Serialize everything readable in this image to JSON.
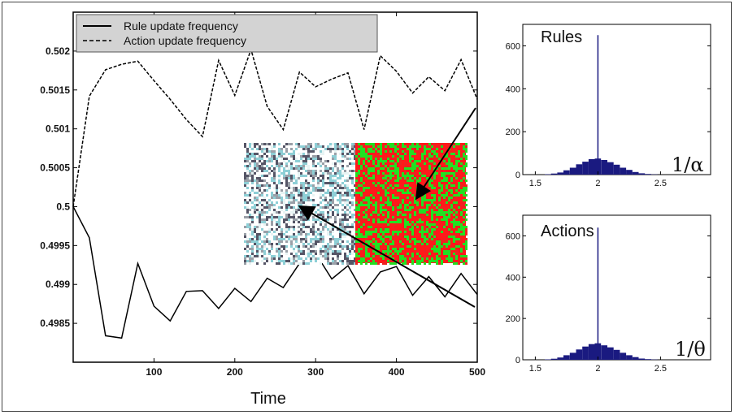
{
  "chart_data": [
    {
      "type": "line",
      "title": "",
      "xlabel": "Time",
      "ylabel": "",
      "xlim": [
        0,
        500
      ],
      "ylim": [
        0.498,
        0.5025
      ],
      "x_ticks": [
        "100",
        "200",
        "300",
        "400",
        "500"
      ],
      "y_ticks": [
        "0.4985",
        "0.499",
        "0.4995",
        "0.5",
        "0.5005",
        "0.501",
        "0.5015",
        "0.502"
      ],
      "legend_placement": "top-left",
      "grid": false,
      "series": [
        {
          "name": "Rule update frequency",
          "style": "solid",
          "color": "#000000",
          "x": [
            0,
            20,
            40,
            60,
            80,
            100,
            120,
            140,
            160,
            180,
            200,
            220,
            240,
            260,
            280,
            300,
            320,
            340,
            360,
            380,
            400,
            420,
            440,
            460,
            480,
            500
          ],
          "y": [
            0.5,
            0.4996,
            0.49834,
            0.49831,
            0.49927,
            0.49872,
            0.49853,
            0.49891,
            0.49892,
            0.49869,
            0.49895,
            0.49878,
            0.49908,
            0.49896,
            0.49927,
            0.4994,
            0.49907,
            0.49924,
            0.49888,
            0.49916,
            0.49923,
            0.49886,
            0.4991,
            0.49884,
            0.49914,
            0.49887
          ]
        },
        {
          "name": "Action update frequency",
          "style": "dashed",
          "color": "#000000",
          "x": [
            0,
            20,
            40,
            60,
            80,
            100,
            120,
            140,
            160,
            180,
            200,
            220,
            240,
            260,
            280,
            300,
            320,
            340,
            360,
            380,
            400,
            420,
            440,
            460,
            480,
            500
          ],
          "y": [
            0.5,
            0.50142,
            0.50176,
            0.50183,
            0.50187,
            0.50162,
            0.50138,
            0.50112,
            0.5009,
            0.50188,
            0.50143,
            0.50202,
            0.50129,
            0.50099,
            0.50173,
            0.50154,
            0.50164,
            0.50172,
            0.50099,
            0.50194,
            0.50174,
            0.50146,
            0.50167,
            0.50149,
            0.50189,
            0.50138
          ]
        }
      ]
    },
    {
      "type": "bar",
      "title": "Rules",
      "parameter_label": "1/α",
      "xlim": [
        1.4,
        2.9
      ],
      "ylim": [
        0,
        700
      ],
      "x_ticks": [
        "1.5",
        "2",
        "2.5"
      ],
      "y_ticks": [
        "0",
        "200",
        "400",
        "600"
      ],
      "x": [
        1.6,
        1.65,
        1.7,
        1.75,
        1.8,
        1.85,
        1.9,
        1.95,
        2.0,
        2.05,
        2.1,
        2.15,
        2.2,
        2.25,
        2.3,
        2.35,
        2.4,
        2.45
      ],
      "values": [
        2,
        5,
        10,
        20,
        32,
        48,
        60,
        72,
        75,
        68,
        58,
        46,
        32,
        22,
        12,
        6,
        3,
        1
      ],
      "spike": {
        "x": 2.0,
        "value": 650
      },
      "color": "#1a1a80"
    },
    {
      "type": "bar",
      "title": "Actions",
      "parameter_label": "1/θ",
      "xlim": [
        1.4,
        2.9
      ],
      "ylim": [
        0,
        700
      ],
      "x_ticks": [
        "1.5",
        "2",
        "2.5"
      ],
      "y_ticks": [
        "0",
        "200",
        "400",
        "600"
      ],
      "x": [
        1.6,
        1.65,
        1.7,
        1.75,
        1.8,
        1.85,
        1.9,
        1.95,
        2.0,
        2.05,
        2.1,
        2.15,
        2.2,
        2.25,
        2.3,
        2.35,
        2.4,
        2.45
      ],
      "values": [
        2,
        5,
        11,
        22,
        34,
        50,
        64,
        76,
        80,
        70,
        60,
        48,
        34,
        22,
        13,
        6,
        3,
        1
      ],
      "spike": {
        "x": 2.0,
        "value": 640
      },
      "color": "#1a1a80"
    }
  ],
  "inset_images": {
    "left_colors": [
      "#ffffff",
      "#8ecfd6",
      "#555566",
      "#9aa0a8",
      "#e8f4f4"
    ],
    "right_colors": [
      "#ff1a1a",
      "#22e022",
      "#ee2222"
    ]
  }
}
